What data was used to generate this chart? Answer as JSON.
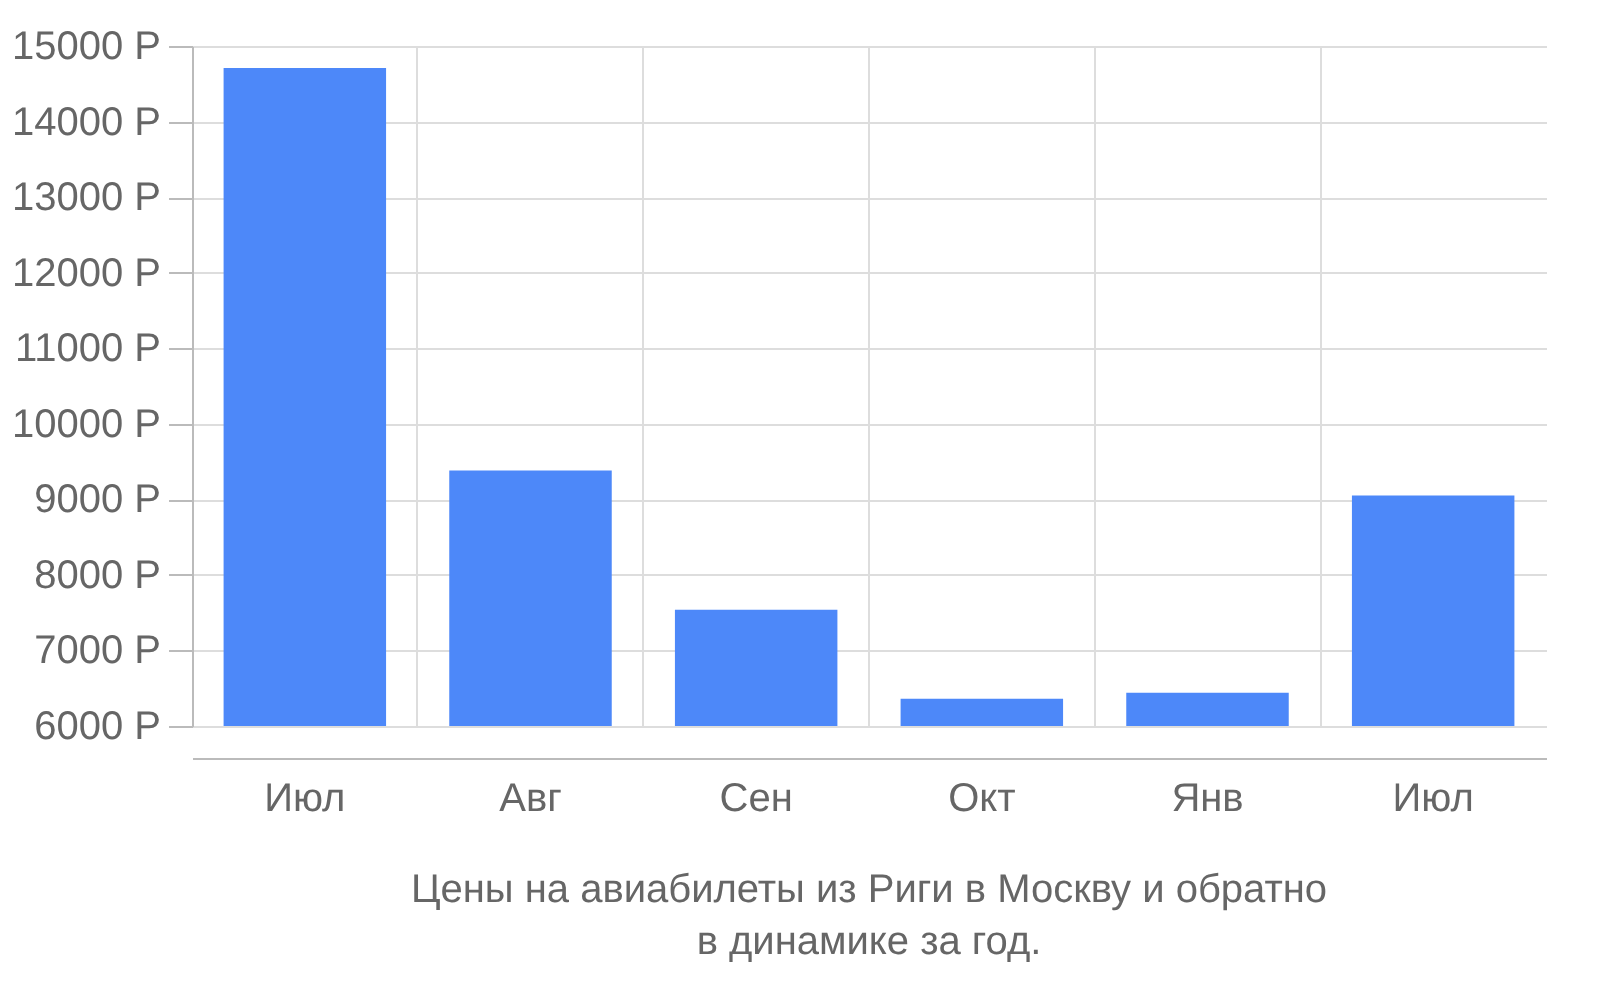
{
  "chart_data": {
    "type": "bar",
    "categories": [
      "Июл",
      "Авг",
      "Сен",
      "Окт",
      "Янв",
      "Июл"
    ],
    "values": [
      14710,
      9380,
      7540,
      6360,
      6440,
      9050
    ],
    "color": "#4d88f9",
    "ylim": [
      6000,
      15000
    ],
    "yticks": [
      {
        "value": 6000,
        "label": "6000 Р"
      },
      {
        "value": 7000,
        "label": "7000 Р"
      },
      {
        "value": 8000,
        "label": "8000 Р"
      },
      {
        "value": 9000,
        "label": "9000 Р"
      },
      {
        "value": 10000,
        "label": "10000 Р"
      },
      {
        "value": 11000,
        "label": "11000 Р"
      },
      {
        "value": 12000,
        "label": "12000 Р"
      },
      {
        "value": 13000,
        "label": "13000 Р"
      },
      {
        "value": 14000,
        "label": "14000 Р"
      },
      {
        "value": 15000,
        "label": "15000 Р"
      }
    ],
    "grid": true,
    "annotations": [
      "Цены на авиабилеты из Риги в Москву и обратно",
      "в динамике за год."
    ]
  }
}
